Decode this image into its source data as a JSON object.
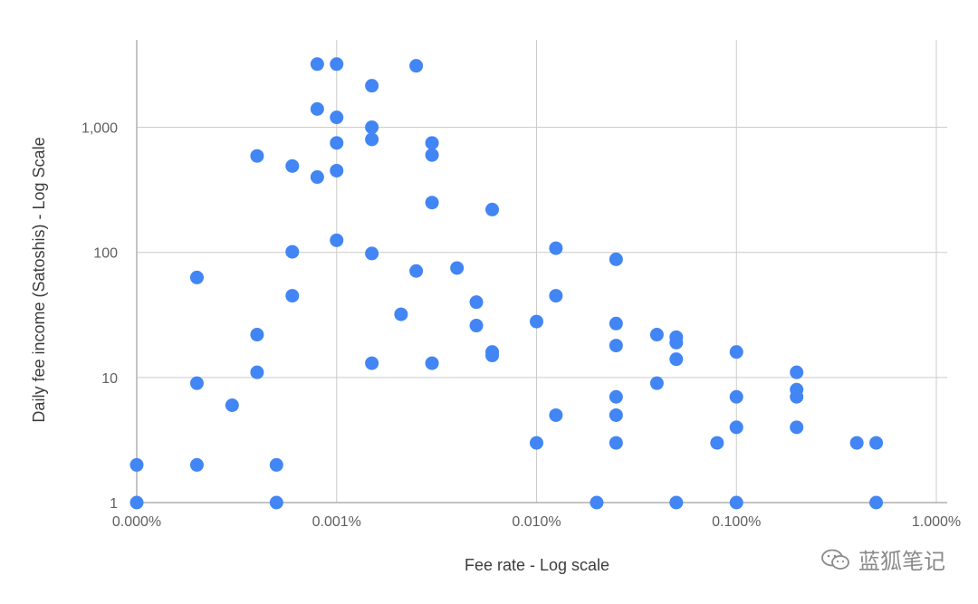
{
  "chart_data": {
    "type": "scatter",
    "xlabel": "Fee rate - Log scale",
    "ylabel": "Daily fee income (Satoshis) - Log Scale",
    "x_scale": "log",
    "y_scale": "log",
    "x_ticks": [
      {
        "value": 1e-05,
        "label": "0.000%"
      },
      {
        "value": 0.0001,
        "label": "0.001%"
      },
      {
        "value": 0.001,
        "label": "0.010%"
      },
      {
        "value": 0.01,
        "label": "0.100%"
      },
      {
        "value": 0.1,
        "label": "1.000%"
      }
    ],
    "y_ticks": [
      {
        "value": 1,
        "label": "1"
      },
      {
        "value": 10,
        "label": "10"
      },
      {
        "value": 100,
        "label": "100"
      },
      {
        "value": 1000,
        "label": "1,000"
      }
    ],
    "xlim": [
      1e-05,
      0.1
    ],
    "ylim": [
      1,
      5000
    ],
    "grid": true,
    "colors": {
      "points": "#4285f4",
      "grid": "#cccccc",
      "axis": "#9e9e9e"
    },
    "points": [
      {
        "x": 1e-05,
        "y": 2
      },
      {
        "x": 1e-05,
        "y": 1
      },
      {
        "x": 2e-05,
        "y": 63
      },
      {
        "x": 2e-05,
        "y": 9
      },
      {
        "x": 2e-05,
        "y": 2
      },
      {
        "x": 3e-05,
        "y": 6
      },
      {
        "x": 4e-05,
        "y": 590
      },
      {
        "x": 4e-05,
        "y": 22
      },
      {
        "x": 4e-05,
        "y": 11
      },
      {
        "x": 5e-05,
        "y": 2
      },
      {
        "x": 5e-05,
        "y": 1
      },
      {
        "x": 6e-05,
        "y": 490
      },
      {
        "x": 6e-05,
        "y": 101
      },
      {
        "x": 6e-05,
        "y": 45
      },
      {
        "x": 8e-05,
        "y": 3200
      },
      {
        "x": 8e-05,
        "y": 1400
      },
      {
        "x": 8e-05,
        "y": 400
      },
      {
        "x": 0.0001,
        "y": 3200
      },
      {
        "x": 0.0001,
        "y": 1200
      },
      {
        "x": 0.0001,
        "y": 750
      },
      {
        "x": 0.0001,
        "y": 450
      },
      {
        "x": 0.0001,
        "y": 125
      },
      {
        "x": 0.00015,
        "y": 2150
      },
      {
        "x": 0.00015,
        "y": 1000
      },
      {
        "x": 0.00015,
        "y": 800
      },
      {
        "x": 0.00015,
        "y": 98
      },
      {
        "x": 0.00015,
        "y": 13
      },
      {
        "x": 0.00021,
        "y": 32
      },
      {
        "x": 0.00025,
        "y": 3100
      },
      {
        "x": 0.00025,
        "y": 71
      },
      {
        "x": 0.0003,
        "y": 750
      },
      {
        "x": 0.0003,
        "y": 600
      },
      {
        "x": 0.0003,
        "y": 250
      },
      {
        "x": 0.0003,
        "y": 13
      },
      {
        "x": 0.0004,
        "y": 75
      },
      {
        "x": 0.0005,
        "y": 40
      },
      {
        "x": 0.0005,
        "y": 26
      },
      {
        "x": 0.0006,
        "y": 220
      },
      {
        "x": 0.0006,
        "y": 16
      },
      {
        "x": 0.0006,
        "y": 15
      },
      {
        "x": 0.001,
        "y": 28
      },
      {
        "x": 0.001,
        "y": 3
      },
      {
        "x": 0.00125,
        "y": 108
      },
      {
        "x": 0.00125,
        "y": 45
      },
      {
        "x": 0.00125,
        "y": 5
      },
      {
        "x": 0.002,
        "y": 1
      },
      {
        "x": 0.0025,
        "y": 88
      },
      {
        "x": 0.0025,
        "y": 27
      },
      {
        "x": 0.0025,
        "y": 18
      },
      {
        "x": 0.0025,
        "y": 7
      },
      {
        "x": 0.0025,
        "y": 5
      },
      {
        "x": 0.0025,
        "y": 3
      },
      {
        "x": 0.004,
        "y": 22
      },
      {
        "x": 0.004,
        "y": 9
      },
      {
        "x": 0.005,
        "y": 21
      },
      {
        "x": 0.005,
        "y": 19
      },
      {
        "x": 0.005,
        "y": 14
      },
      {
        "x": 0.005,
        "y": 1
      },
      {
        "x": 0.008,
        "y": 3
      },
      {
        "x": 0.01,
        "y": 16
      },
      {
        "x": 0.01,
        "y": 7
      },
      {
        "x": 0.01,
        "y": 4
      },
      {
        "x": 0.01,
        "y": 1
      },
      {
        "x": 0.02,
        "y": 11
      },
      {
        "x": 0.02,
        "y": 8
      },
      {
        "x": 0.02,
        "y": 7
      },
      {
        "x": 0.02,
        "y": 4
      },
      {
        "x": 0.04,
        "y": 3
      },
      {
        "x": 0.05,
        "y": 3
      },
      {
        "x": 0.05,
        "y": 1
      }
    ]
  },
  "watermark": {
    "text": "蓝狐笔记",
    "icon": "wechat-icon"
  }
}
